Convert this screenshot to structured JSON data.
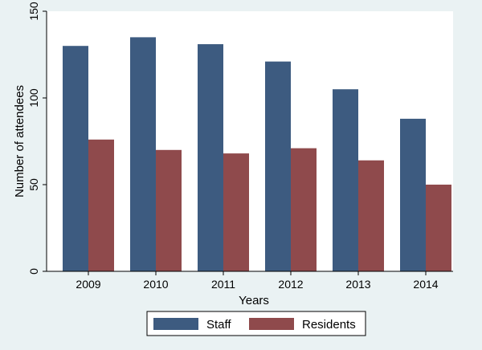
{
  "chart_data": {
    "type": "bar",
    "title": "",
    "xlabel": "Years",
    "ylabel": "Number of attendees",
    "categories": [
      "2009",
      "2010",
      "2011",
      "2012",
      "2013",
      "2014"
    ],
    "series": [
      {
        "name": "Staff",
        "values": [
          130,
          135,
          131,
          121,
          105,
          88
        ],
        "color": "#3d5b80"
      },
      {
        "name": "Residents",
        "values": [
          76,
          70,
          68,
          71,
          64,
          50
        ],
        "color": "#8f4a4c"
      }
    ],
    "ylim": [
      0,
      150
    ],
    "yticks": [
      0,
      50,
      100,
      150
    ],
    "grid": false,
    "legend_position": "bottom"
  },
  "colors": {
    "page_background": "#eaf2f3",
    "plot_background": "#ffffff"
  }
}
